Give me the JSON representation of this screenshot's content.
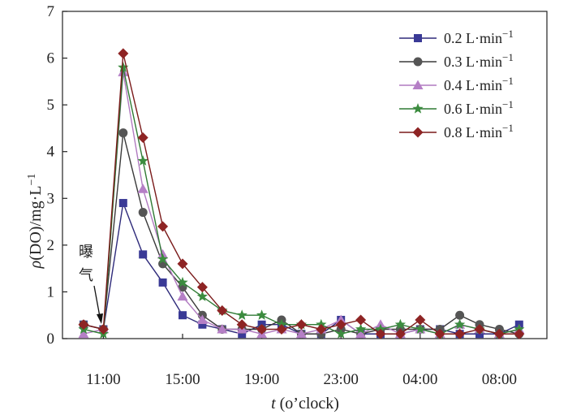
{
  "chart_data": {
    "type": "line",
    "x": [
      0,
      1,
      2,
      3,
      4,
      5,
      6,
      7,
      8,
      9,
      10,
      11,
      12,
      13,
      14,
      15,
      16,
      17,
      18,
      19,
      20,
      21,
      22
    ],
    "x_tick_labels": [
      {
        "x": 1,
        "label": "11:00"
      },
      {
        "x": 5,
        "label": "15:00"
      },
      {
        "x": 9,
        "label": "19:00"
      },
      {
        "x": 13,
        "label": "23:00"
      },
      {
        "x": 17,
        "label": "04:00"
      },
      {
        "x": 21,
        "label": "08:00"
      }
    ],
    "y_ticks": [
      0,
      1,
      2,
      3,
      4,
      5,
      6,
      7
    ],
    "ylim": [
      0,
      7
    ],
    "xlabel_italic": "t",
    "xlabel_rest": " (o’clock)",
    "ylabel_rho": "ρ",
    "ylabel_rest": "(DO)/mg·L",
    "ylabel_sup": "−1",
    "annotation": {
      "line1": "曝",
      "line2": "气"
    },
    "legend_position": "top-right",
    "series": [
      {
        "name": "0.2 L·min",
        "sup": "−1",
        "marker": "square",
        "color": "#2e2a7a",
        "marker_color": "#3a3a96",
        "values": [
          0.3,
          0.2,
          2.9,
          1.8,
          1.2,
          0.5,
          0.3,
          0.2,
          0.1,
          0.3,
          0.3,
          0.1,
          0.1,
          0.4,
          0.1,
          0.1,
          0.1,
          0.2,
          0.2,
          0.1,
          0.1,
          0.1,
          0.3
        ]
      },
      {
        "name": "0.3 L·min",
        "sup": "−1",
        "marker": "circle",
        "color": "#3a3a3a",
        "marker_color": "#555555",
        "values": [
          0.3,
          0.2,
          4.4,
          2.7,
          1.6,
          1.1,
          0.5,
          0.2,
          0.2,
          0.2,
          0.4,
          0.1,
          0.1,
          0.2,
          0.1,
          0.2,
          0.2,
          0.2,
          0.2,
          0.5,
          0.3,
          0.2,
          0.1
        ]
      },
      {
        "name": "0.4 L·min",
        "sup": "−1",
        "marker": "triangle",
        "color": "#b07ac0",
        "marker_color": "#b57fc6",
        "values": [
          0.1,
          0.2,
          5.7,
          3.2,
          1.8,
          0.9,
          0.4,
          0.2,
          0.2,
          0.1,
          0.2,
          0.1,
          0.2,
          0.4,
          0.1,
          0.3,
          0.1,
          0.2,
          0.1,
          0.3,
          0.2,
          0.1,
          0.2
        ]
      },
      {
        "name": "0.6 L·min",
        "sup": "−1",
        "marker": "star",
        "color": "#2f7a34",
        "marker_color": "#3c8c3f",
        "values": [
          0.2,
          0.1,
          5.8,
          3.8,
          1.7,
          1.2,
          0.9,
          0.6,
          0.5,
          0.5,
          0.3,
          0.3,
          0.3,
          0.1,
          0.2,
          0.2,
          0.3,
          0.2,
          0.1,
          0.3,
          0.2,
          0.1,
          0.2
        ]
      },
      {
        "name": "0.8 L·min",
        "sup": "−1",
        "marker": "diamond",
        "color": "#7a1a1a",
        "marker_color": "#8e2424",
        "values": [
          0.3,
          0.2,
          6.1,
          4.3,
          2.4,
          1.6,
          1.1,
          0.6,
          0.3,
          0.2,
          0.2,
          0.3,
          0.2,
          0.3,
          0.4,
          0.1,
          0.1,
          0.4,
          0.1,
          0.1,
          0.2,
          0.1,
          0.1
        ]
      }
    ]
  }
}
